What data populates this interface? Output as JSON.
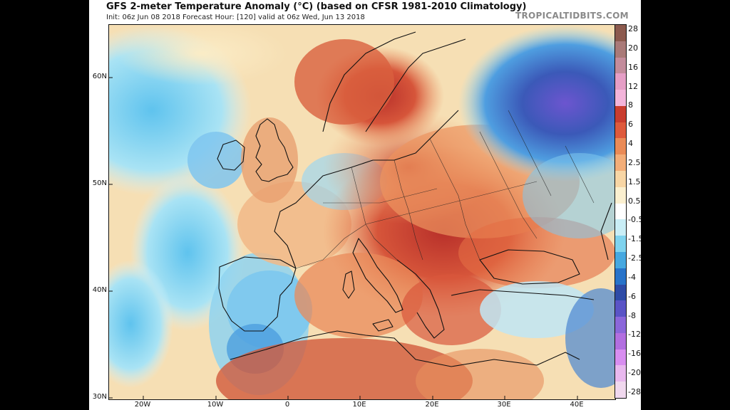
{
  "header": {
    "title": "GFS 2-meter Temperature Anomaly (°C) (based on CFSR 1981-2010 Climatology)",
    "subtitle": "Init: 06z Jun 08 2018   Forecast Hour: [120]   valid at 06z Wed, Jun 13 2018",
    "watermark": "TROPICALTIDBITS.COM"
  },
  "map": {
    "lat_labels": [
      "60N",
      "50N",
      "40N",
      "30N"
    ],
    "lon_labels": [
      "20W",
      "10W",
      "0",
      "10E",
      "20E",
      "30E",
      "40E"
    ],
    "extent": {
      "lon_min": -24,
      "lon_max": 45,
      "lat_min": 30,
      "lat_max": 65
    }
  },
  "colorbar": {
    "labels": [
      "28",
      "20",
      "16",
      "12",
      "8",
      "6",
      "4",
      "2.5",
      "1.5",
      "0.5",
      "-0.5",
      "-1.5",
      "-2.5",
      "-4",
      "-6",
      "-8",
      "-12",
      "-16",
      "-20",
      "-28"
    ],
    "colors": [
      "#8c5a4e",
      "#a97a78",
      "#c38c9c",
      "#e59ec6",
      "#f3b4da",
      "#c93d2f",
      "#de5a3c",
      "#ea8b57",
      "#f3ae79",
      "#f8d6a5",
      "#fbf0d0",
      "#ffffff",
      "#c9eef6",
      "#7fd3ee",
      "#46a8e0",
      "#2873c9",
      "#2e4ba6",
      "#5a54c6",
      "#8b67da",
      "#b26fe0",
      "#d88ef0",
      "#e8b8ee",
      "#f0d8ee"
    ]
  }
}
